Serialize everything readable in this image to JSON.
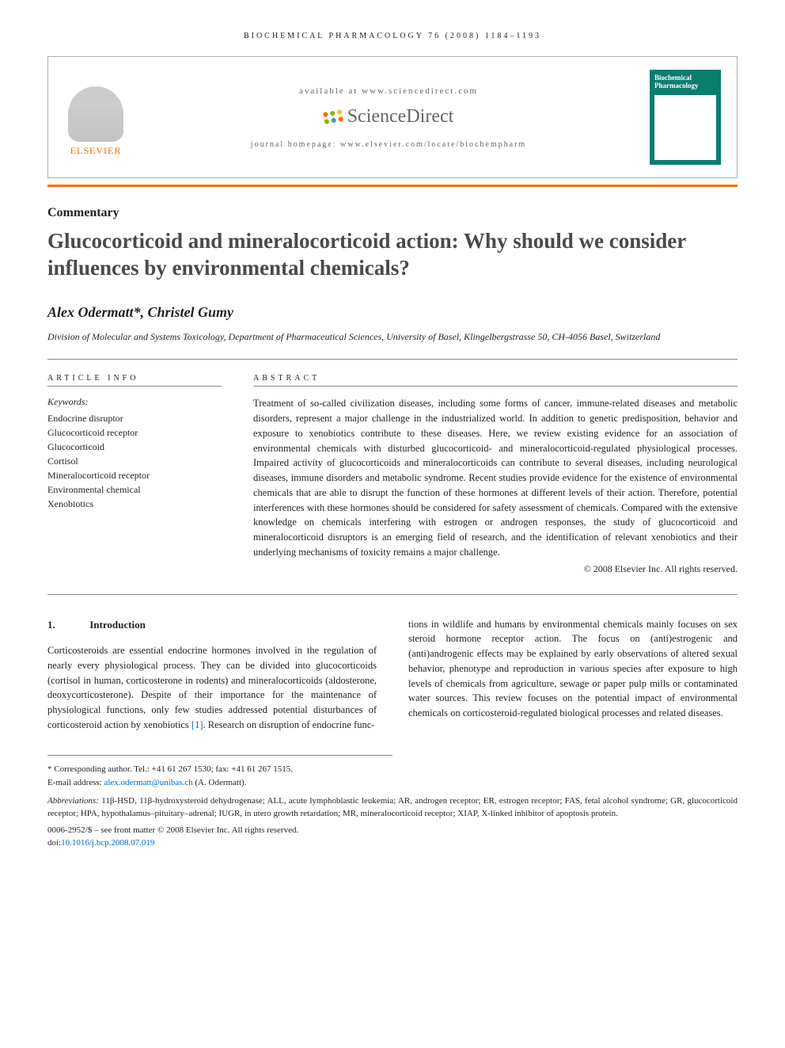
{
  "running_head": "BIOCHEMICAL PHARMACOLOGY 76 (2008) 1184–1193",
  "header": {
    "elsevier": "ELSEVIER",
    "available": "available at www.sciencedirect.com",
    "sd_brand": "ScienceDirect",
    "journal_home": "journal homepage: www.elsevier.com/locate/biochempharm",
    "cover_title": "Biochemical Pharmacology"
  },
  "article": {
    "type": "Commentary",
    "title": "Glucocorticoid and mineralocorticoid action: Why should we consider influences by environmental chemicals?",
    "authors": "Alex Odermatt*, Christel Gumy",
    "affiliation": "Division of Molecular and Systems Toxicology, Department of Pharmaceutical Sciences, University of Basel, Klingelbergstrasse 50, CH-4056 Basel, Switzerland"
  },
  "info": {
    "head": "ARTICLE INFO",
    "keywords_label": "Keywords:",
    "keywords": [
      "Endocrine disruptor",
      "Glucocorticoid receptor",
      "Glucocorticoid",
      "Cortisol",
      "Mineralocorticoid receptor",
      "Environmental chemical",
      "Xenobiotics"
    ]
  },
  "abstract": {
    "head": "ABSTRACT",
    "text": "Treatment of so-called civilization diseases, including some forms of cancer, immune-related diseases and metabolic disorders, represent a major challenge in the industrialized world. In addition to genetic predisposition, behavior and exposure to xenobiotics contribute to these diseases. Here, we review existing evidence for an association of environmental chemicals with disturbed glucocorticoid- and mineralocorticoid-regulated physiological processes. Impaired activity of glucocorticoids and mineralocorticoids can contribute to several diseases, including neurological diseases, immune disorders and metabolic syndrome. Recent studies provide evidence for the existence of environmental chemicals that are able to disrupt the function of these hormones at different levels of their action. Therefore, potential interferences with these hormones should be considered for safety assessment of chemicals. Compared with the extensive knowledge on chemicals interfering with estrogen or androgen responses, the study of glucocorticoid and mineralocorticoid disruptors is an emerging field of research, and the identification of relevant xenobiotics and their underlying mechanisms of toxicity remains a major challenge.",
    "copyright": "© 2008 Elsevier Inc. All rights reserved."
  },
  "body": {
    "section_num": "1.",
    "section_title": "Introduction",
    "col1": "Corticosteroids are essential endocrine hormones involved in the regulation of nearly every physiological process. They can be divided into glucocorticoids (cortisol in human, corticosterone in rodents) and mineralocorticoids (aldosterone, deoxycorticosterone). Despite of their importance for the maintenance of physiological functions, only few studies addressed potential disturbances of corticosteroid action by xenobiotics ",
    "ref1": "[1]",
    "col1_after": ". Research on disruption of endocrine func-",
    "col2": "tions in wildlife and humans by environmental chemicals mainly focuses on sex steroid hormone receptor action. The focus on (anti)estrogenic and (anti)androgenic effects may be explained by early observations of altered sexual behavior, phenotype and reproduction in various species after exposure to high levels of chemicals from agriculture, sewage or paper pulp mills or contaminated water sources. This review focuses on the potential impact of environmental chemicals on corticosteroid-regulated biological processes and related diseases."
  },
  "footnotes": {
    "corr": "* Corresponding author. Tel.: +41 61 267 1530; fax: +41 61 267 1515.",
    "email_label": "E-mail address: ",
    "email": "alex.odermatt@unibas.ch",
    "email_suffix": " (A. Odermatt).",
    "abbrev_label": "Abbreviations:",
    "abbrev": " 11β-HSD, 11β-hydroxysteroid dehydrogenase; ALL, acute lymphoblastic leukemia; AR, androgen receptor; ER, estrogen receptor; FAS, fetal alcohol syndrome; GR, glucocorticoid receptor; HPA, hypothalamus–pituitary–adrenal; IUGR, in utero growth retardation; MR, mineralocorticoid receptor; XIAP, X-linked inhibitor of apoptosis protein.",
    "issn": "0006-2952/$ – see front matter © 2008 Elsevier Inc. All rights reserved.",
    "doi_label": "doi:",
    "doi": "10.1016/j.bcp.2008.07.019"
  },
  "colors": {
    "orange": "#ff6b00",
    "teal": "#0a7d6f",
    "link": "#0066cc",
    "text": "#231f20",
    "sd_green": "#7fba00",
    "sd_orange": "#ff6b00",
    "sd_blue": "#4a90d9",
    "sd_yellow": "#f5c518"
  }
}
